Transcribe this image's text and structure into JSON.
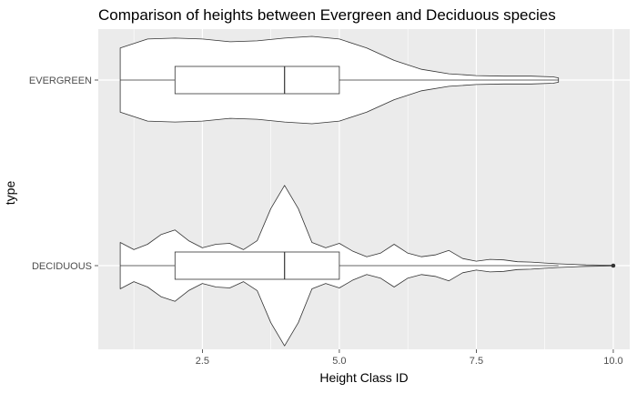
{
  "chart_data": {
    "type": "violin",
    "title": "Comparison of heights between Evergreen and Deciduous species",
    "xlabel": "Height Class ID",
    "ylabel": "type",
    "xlim": [
      0.6,
      10.3
    ],
    "x_ticks": [
      "2.5",
      "5.0",
      "7.5",
      "10.0"
    ],
    "x_tick_values": [
      2.5,
      5.0,
      7.5,
      10.0
    ],
    "categories": [
      "EVERGREEN",
      "DECIDUOUS"
    ],
    "grid": true,
    "colors": {
      "panel": "#ebebeb",
      "grid": "#ffffff",
      "fill": "#ffffff",
      "stroke": "#333333"
    },
    "series": [
      {
        "category": "EVERGREEN",
        "box": {
          "min": 1,
          "q1": 2,
          "median": 4,
          "q3": 5,
          "max": 9
        },
        "outliers": [],
        "density": {
          "x": [
            1,
            1.5,
            2,
            2.5,
            3,
            3.5,
            4,
            4.5,
            5,
            5.5,
            6,
            6.5,
            7,
            7.5,
            8,
            8.5,
            8.9,
            9
          ],
          "width": [
            0.18,
            0.23,
            0.235,
            0.23,
            0.215,
            0.22,
            0.235,
            0.245,
            0.23,
            0.18,
            0.11,
            0.06,
            0.035,
            0.025,
            0.022,
            0.022,
            0.018,
            0.012
          ]
        }
      },
      {
        "category": "DECIDUOUS",
        "box": {
          "min": 1,
          "q1": 2,
          "median": 4,
          "q3": 5,
          "max": 9
        },
        "outliers": [
          10.0
        ],
        "density": {
          "x": [
            1,
            1.25,
            1.5,
            1.75,
            2,
            2.25,
            2.5,
            2.75,
            3,
            3.25,
            3.5,
            3.75,
            4,
            4.25,
            4.5,
            4.75,
            5,
            5.25,
            5.5,
            5.75,
            6,
            6.25,
            6.5,
            6.75,
            7,
            7.25,
            7.5,
            7.75,
            8,
            8.25,
            8.5,
            8.75,
            9,
            9.5,
            10
          ],
          "width": [
            0.13,
            0.09,
            0.12,
            0.175,
            0.2,
            0.14,
            0.1,
            0.12,
            0.125,
            0.09,
            0.14,
            0.32,
            0.45,
            0.32,
            0.13,
            0.1,
            0.125,
            0.08,
            0.05,
            0.07,
            0.12,
            0.07,
            0.05,
            0.06,
            0.085,
            0.04,
            0.025,
            0.035,
            0.032,
            0.022,
            0.02,
            0.015,
            0.01,
            0.004,
            0.002
          ]
        }
      }
    ]
  }
}
